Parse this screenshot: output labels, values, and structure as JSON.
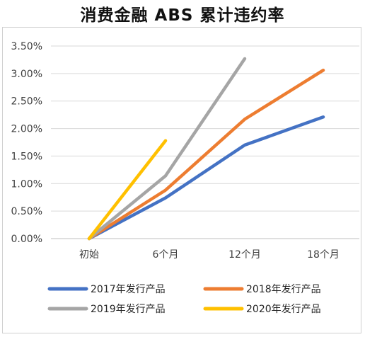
{
  "chart_data": {
    "type": "line",
    "title": "消费金融 ABS 累计违约率",
    "categories": [
      "初始",
      "6个月",
      "12个月",
      "18个月"
    ],
    "y_ticks": [
      "0.00%",
      "0.50%",
      "1.00%",
      "1.50%",
      "2.00%",
      "2.50%",
      "3.00%",
      "3.50%"
    ],
    "ylim": [
      0,
      3.5
    ],
    "y_unit": "%",
    "grid": true,
    "legend_position": "bottom",
    "series": [
      {
        "name": "2017年发行产品",
        "color": "#4472c4",
        "values": [
          0,
          0.74,
          1.7,
          2.21
        ]
      },
      {
        "name": "2018年发行产品",
        "color": "#ed7d31",
        "values": [
          0,
          0.88,
          2.17,
          3.06
        ]
      },
      {
        "name": "2019年发行产品",
        "color": "#a5a5a5",
        "values": [
          0,
          1.14,
          3.27,
          null
        ]
      },
      {
        "name": "2020年发行产品",
        "color": "#ffc000",
        "values": [
          0,
          1.78,
          null,
          null
        ]
      }
    ]
  }
}
